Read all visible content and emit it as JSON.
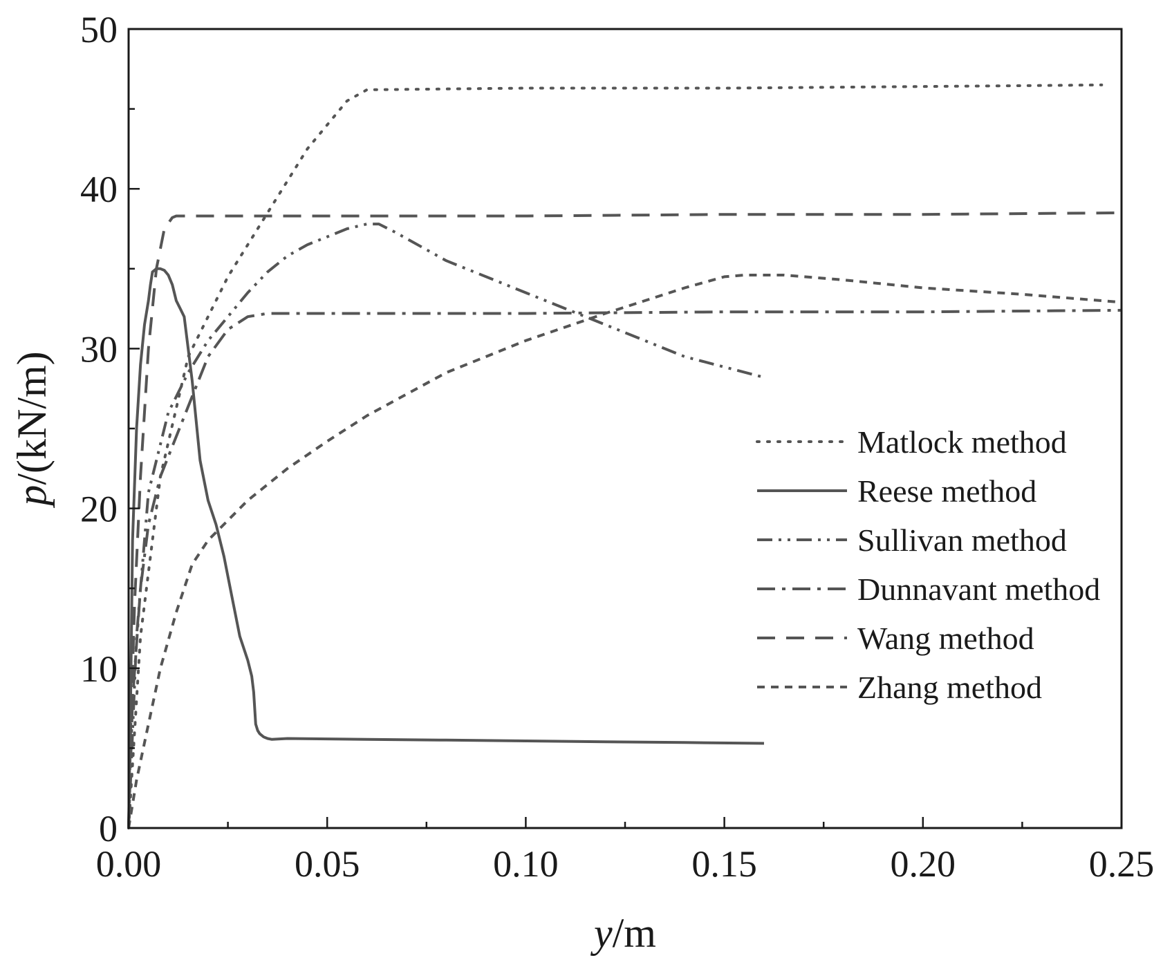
{
  "chart_data": {
    "type": "line",
    "xlabel": {
      "italic": "y",
      "rest": "/m"
    },
    "ylabel": {
      "italic": "p",
      "rest": "/(kN/m)"
    },
    "xlim": [
      0,
      0.25
    ],
    "ylim": [
      0,
      50
    ],
    "x_ticks": [
      0.0,
      0.05,
      0.1,
      0.15,
      0.2,
      0.25
    ],
    "x_tick_labels": [
      "0.00",
      "0.05",
      "0.10",
      "0.15",
      "0.20",
      "0.25"
    ],
    "x_minor_ticks": [
      0.025,
      0.075,
      0.125,
      0.175,
      0.225
    ],
    "y_ticks": [
      0,
      10,
      20,
      30,
      40,
      50
    ],
    "y_tick_labels": [
      "0",
      "10",
      "20",
      "30",
      "40",
      "50"
    ],
    "y_minor_ticks": [
      5,
      15,
      25,
      35,
      45
    ],
    "grid": false,
    "legend_position": "right",
    "line_color": "#555555",
    "series": [
      {
        "name": "Matlock method",
        "dash": "dot",
        "x": [
          0,
          0.003,
          0.008,
          0.015,
          0.025,
          0.035,
          0.045,
          0.055,
          0.06,
          0.1,
          0.15,
          0.2,
          0.245
        ],
        "y": [
          0,
          12,
          22,
          29.5,
          34.5,
          38.5,
          42.5,
          45.5,
          46.2,
          46.3,
          46.3,
          46.4,
          46.5
        ]
      },
      {
        "name": "Reese method",
        "dash": "solid",
        "x": [
          0,
          0.0005,
          0.001,
          0.002,
          0.003,
          0.004,
          0.005,
          0.0055,
          0.006,
          0.007,
          0.008,
          0.009,
          0.01,
          0.011,
          0.012,
          0.013,
          0.014,
          0.016,
          0.018,
          0.02,
          0.022,
          0.024,
          0.026,
          0.028,
          0.03,
          0.031,
          0.0315,
          0.032,
          0.0325,
          0.033,
          0.034,
          0.035,
          0.036,
          0.04,
          0.06,
          0.08,
          0.1,
          0.12,
          0.14,
          0.16
        ],
        "y": [
          0,
          8,
          18,
          25,
          29,
          31.5,
          33,
          34,
          34.8,
          35,
          35,
          34.9,
          34.6,
          34,
          33,
          32.5,
          32,
          28,
          23,
          20.5,
          19,
          17,
          14.5,
          12,
          10.5,
          9.5,
          8.5,
          6.5,
          6.1,
          5.9,
          5.7,
          5.6,
          5.55,
          5.6,
          5.55,
          5.5,
          5.45,
          5.4,
          5.35,
          5.3
        ]
      },
      {
        "name": "Sullivan method",
        "dash": "dash-dot-dot",
        "x": [
          0,
          0.002,
          0.005,
          0.01,
          0.015,
          0.02,
          0.025,
          0.03,
          0.035,
          0.04,
          0.045,
          0.05,
          0.055,
          0.06,
          0.063,
          0.067,
          0.08,
          0.1,
          0.12,
          0.14,
          0.16
        ],
        "y": [
          0,
          12,
          21,
          26,
          28.5,
          30.5,
          32,
          33.5,
          34.8,
          35.8,
          36.5,
          37,
          37.5,
          37.8,
          37.8,
          37.3,
          35.5,
          33.5,
          31.5,
          29.5,
          28.2
        ]
      },
      {
        "name": "Dunnavant method",
        "dash": "dash-dot",
        "x": [
          0,
          0.001,
          0.003,
          0.005,
          0.008,
          0.012,
          0.016,
          0.02,
          0.025,
          0.03,
          0.035,
          0.05,
          0.1,
          0.15,
          0.2,
          0.25
        ],
        "y": [
          0,
          8,
          15,
          19,
          22,
          24.5,
          27,
          29.5,
          31.2,
          32,
          32.2,
          32.2,
          32.2,
          32.3,
          32.3,
          32.4
        ]
      },
      {
        "name": "Wang method",
        "dash": "dash",
        "x": [
          0,
          0.0005,
          0.0015,
          0.003,
          0.005,
          0.007,
          0.009,
          0.011,
          0.012,
          0.015,
          0.03,
          0.06,
          0.1,
          0.15,
          0.2,
          0.25
        ],
        "y": [
          0,
          6,
          14,
          22,
          30,
          35,
          37.5,
          38.2,
          38.3,
          38.3,
          38.3,
          38.3,
          38.3,
          38.4,
          38.4,
          38.5
        ]
      },
      {
        "name": "Zhang method",
        "dash": "short-dash",
        "x": [
          0,
          0.002,
          0.005,
          0.008,
          0.012,
          0.016,
          0.02,
          0.03,
          0.04,
          0.05,
          0.06,
          0.08,
          0.1,
          0.12,
          0.14,
          0.15,
          0.155,
          0.165,
          0.18,
          0.2,
          0.225,
          0.25
        ],
        "y": [
          0,
          3,
          6.5,
          10,
          13.5,
          16.5,
          18,
          20.5,
          22.5,
          24.2,
          25.8,
          28.5,
          30.5,
          32.2,
          33.8,
          34.5,
          34.6,
          34.6,
          34.3,
          33.8,
          33.4,
          32.9
        ]
      }
    ]
  }
}
